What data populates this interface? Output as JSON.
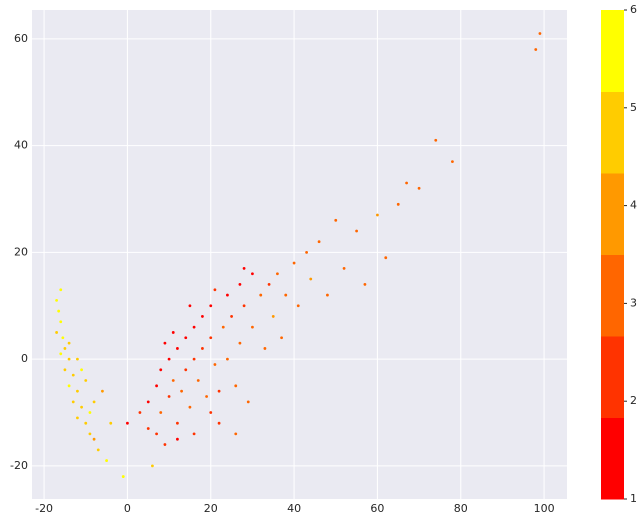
{
  "chart_data": {
    "type": "scatter",
    "x": [
      -17,
      -16.5,
      -16,
      -17,
      -15.5,
      -15,
      -16,
      -14,
      -15,
      -13,
      -14,
      -12,
      -13,
      -11,
      -12,
      -10,
      -9,
      -8,
      -7,
      -5,
      -1,
      -10,
      -11,
      -8,
      -6,
      -14,
      -16,
      -12,
      -9,
      -4,
      0,
      3,
      5,
      5,
      7,
      8,
      8,
      10,
      10,
      11,
      12,
      12,
      13,
      14,
      14,
      15,
      16,
      16,
      17,
      18,
      18,
      19,
      20,
      20,
      21,
      22,
      23,
      24,
      24,
      25,
      26,
      27,
      27,
      28,
      29,
      30,
      30,
      32,
      33,
      34,
      35,
      36,
      37,
      38,
      40,
      41,
      43,
      44,
      46,
      48,
      50,
      52,
      55,
      57,
      60,
      62,
      65,
      67,
      70,
      74,
      78,
      98,
      99,
      16,
      26,
      6,
      9,
      12,
      20,
      11,
      9,
      21,
      28,
      22,
      15,
      7
    ],
    "y": [
      11,
      9,
      7,
      5,
      4,
      2,
      1,
      0,
      -2,
      -3,
      -5,
      -6,
      -8,
      -9,
      -11,
      -12,
      -14,
      -15,
      -17,
      -19,
      -22,
      -4,
      -2,
      -8,
      -6,
      3,
      13,
      0,
      -10,
      -12,
      -12,
      -10,
      -8,
      -13,
      -5,
      -2,
      -10,
      -7,
      0,
      -4,
      2,
      -12,
      -6,
      4,
      -2,
      -9,
      6,
      0,
      -4,
      8,
      2,
      -7,
      10,
      4,
      -1,
      -12,
      6,
      12,
      0,
      8,
      -5,
      14,
      3,
      10,
      -8,
      16,
      6,
      12,
      2,
      14,
      8,
      16,
      4,
      12,
      18,
      10,
      20,
      15,
      22,
      12,
      26,
      17,
      24,
      14,
      27,
      19,
      29,
      33,
      32,
      41,
      37,
      58,
      61,
      -14,
      -14,
      -20,
      -16,
      -15,
      -10,
      5,
      3,
      13,
      17,
      -6,
      10,
      -14
    ],
    "color_values": [
      6,
      6,
      6,
      5,
      6,
      5,
      6,
      5,
      5,
      5,
      6,
      5,
      5,
      5,
      5,
      5,
      5,
      4,
      5,
      6,
      6,
      5,
      6,
      5,
      4,
      5,
      6,
      5,
      6,
      5,
      1,
      2,
      1,
      2,
      1,
      1,
      3,
      2,
      1,
      3,
      1,
      2,
      3,
      1,
      2,
      3,
      1,
      2,
      3,
      1,
      2,
      3,
      1,
      2,
      3,
      2,
      3,
      1,
      3,
      2,
      3,
      1,
      3,
      2,
      3,
      1,
      3,
      3,
      3,
      2,
      4,
      3,
      3,
      3,
      3,
      3,
      3,
      4,
      3,
      3,
      3,
      3,
      3,
      3,
      4,
      3,
      3,
      3,
      3,
      3,
      3,
      3,
      3,
      2,
      3,
      5,
      2,
      1,
      2,
      1,
      1,
      2,
      1,
      2,
      1,
      2
    ],
    "colormap": [
      "#ff0000",
      "#ff3300",
      "#ff6600",
      "#ff9900",
      "#ffcc00",
      "#ffff00"
    ],
    "clim": [
      1,
      6
    ],
    "cticks": [
      1,
      2,
      3,
      4,
      5,
      6
    ],
    "xlim": [
      -22.9,
      105.5
    ],
    "xticks": [
      -20,
      0,
      20,
      40,
      60,
      80,
      100
    ],
    "ylim": [
      -26.2,
      65.4
    ],
    "yticks": [
      -20,
      0,
      20,
      40,
      60
    ],
    "grid": true
  }
}
